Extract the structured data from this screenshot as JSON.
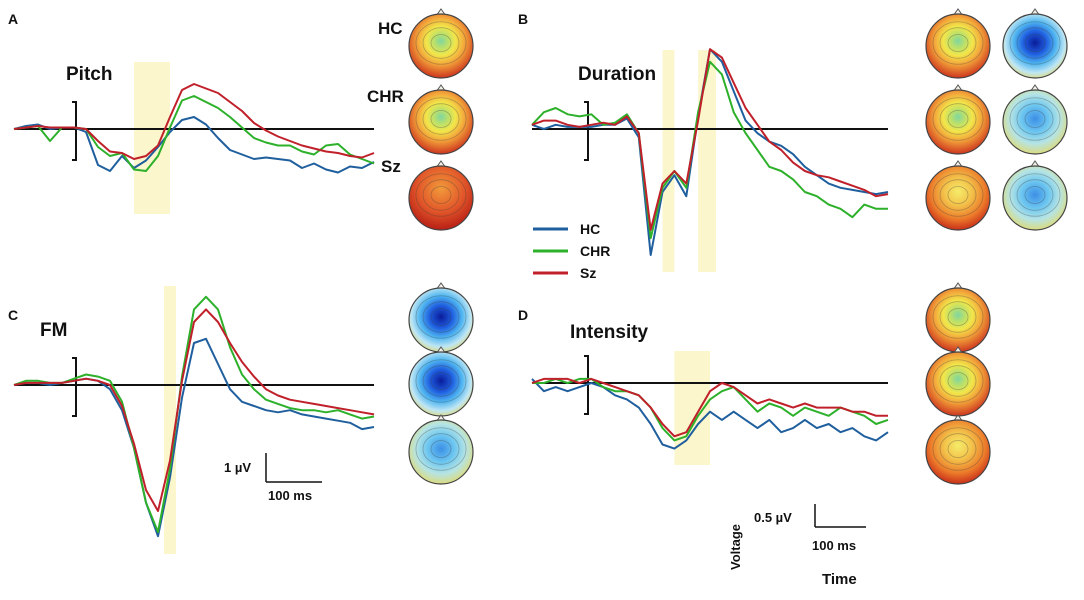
{
  "colors": {
    "HC": "#1f5f9e",
    "CHR": "#2db02a",
    "Sz": "#c0202a",
    "highlight": "#fbf6cc"
  },
  "legend": [
    {
      "name": "HC",
      "color": "#1f5f9e"
    },
    {
      "name": "CHR",
      "color": "#2db02a"
    },
    {
      "name": "Sz",
      "color": "#c0202a"
    }
  ],
  "scale_bars": {
    "top_left": {
      "amplitude": "1 µV",
      "time": "100 ms"
    },
    "bottom_right": {
      "amplitude": "0.5 µV",
      "time": "100 ms",
      "y_axis_label": "Voltage",
      "x_axis_label": "Time"
    }
  },
  "chart_data": [
    {
      "type": "line",
      "panel": "A",
      "title": "Pitch",
      "group_labels": [
        "HC",
        "CHR",
        "Sz"
      ],
      "y_unit": "µV",
      "x": [
        -100,
        -80,
        -60,
        -40,
        -20,
        0,
        20,
        40,
        60,
        80,
        100,
        120,
        140,
        160,
        180,
        200,
        220,
        240,
        260,
        280,
        300,
        320,
        340,
        360,
        380,
        400,
        420,
        440,
        460,
        480,
        500
      ],
      "series": [
        {
          "name": "HC",
          "values": [
            0,
            0.1,
            0.15,
            0,
            0.05,
            0.05,
            -0.1,
            -1.2,
            -1.4,
            -0.9,
            -1.3,
            -1.05,
            -0.6,
            -0.1,
            0.3,
            0.4,
            0.15,
            -0.3,
            -0.7,
            -0.85,
            -1.0,
            -0.95,
            -1.0,
            -1.05,
            -1.3,
            -1.15,
            -1.35,
            -1.45,
            -1.25,
            -1.3,
            -1.1
          ]
        },
        {
          "name": "CHR",
          "values": [
            0,
            0.05,
            0.1,
            -0.4,
            0.05,
            0.05,
            0,
            -0.6,
            -0.9,
            -0.8,
            -1.35,
            -1.4,
            -0.9,
            0.05,
            0.95,
            1.1,
            0.9,
            0.7,
            0.4,
            0.05,
            -0.3,
            -0.45,
            -0.55,
            -0.55,
            -0.75,
            -0.85,
            -0.55,
            -0.5,
            -0.85,
            -1.0,
            -1.15
          ]
        },
        {
          "name": "Sz",
          "values": [
            0,
            0.05,
            0.1,
            0.05,
            0.05,
            0.05,
            0,
            -0.4,
            -0.75,
            -0.8,
            -1.0,
            -0.9,
            -0.55,
            0.4,
            1.3,
            1.5,
            1.35,
            1.2,
            0.9,
            0.6,
            0.2,
            -0.05,
            -0.25,
            -0.4,
            -0.55,
            -0.65,
            -0.75,
            -0.8,
            -0.9,
            -0.95,
            -0.8
          ]
        }
      ],
      "highlight_windows": [
        [
          100,
          160
        ]
      ]
    },
    {
      "type": "line",
      "panel": "B",
      "title": "Duration",
      "y_unit": "µV",
      "x": [
        -100,
        -80,
        -60,
        -40,
        -20,
        0,
        20,
        40,
        60,
        80,
        100,
        120,
        140,
        160,
        180,
        200,
        220,
        240,
        260,
        280,
        300,
        320,
        340,
        360,
        380,
        400,
        420,
        440,
        460,
        480,
        500
      ],
      "series": [
        {
          "name": "HC",
          "values": [
            0.1,
            0,
            0.1,
            0.05,
            0.05,
            0.05,
            0.1,
            0.1,
            0.25,
            -0.2,
            -3.0,
            -1.5,
            -1.1,
            -1.6,
            0.3,
            1.9,
            1.6,
            0.9,
            0.2,
            -0.1,
            -0.3,
            -0.4,
            -0.6,
            -0.9,
            -1.1,
            -1.3,
            -1.4,
            -1.45,
            -1.5,
            -1.55,
            -1.5
          ]
        },
        {
          "name": "CHR",
          "values": [
            0.1,
            0.4,
            0.5,
            0.35,
            0.3,
            0.35,
            0.1,
            0.15,
            0.35,
            -0.1,
            -2.6,
            -1.4,
            -1.0,
            -1.4,
            0.4,
            1.6,
            1.3,
            0.4,
            -0.1,
            -0.5,
            -0.9,
            -1.0,
            -1.2,
            -1.5,
            -1.6,
            -1.8,
            -1.9,
            -2.1,
            -1.8,
            -1.9,
            -1.9
          ]
        },
        {
          "name": "Sz",
          "values": [
            0.1,
            0.2,
            0.2,
            0.1,
            0.05,
            0.1,
            0.15,
            0.1,
            0.3,
            -0.1,
            -2.4,
            -1.3,
            -1.0,
            -1.3,
            0.2,
            1.9,
            1.7,
            1.1,
            0.5,
            0.1,
            -0.3,
            -0.5,
            -0.8,
            -1.0,
            -1.1,
            -1.15,
            -1.25,
            -1.35,
            -1.45,
            -1.6,
            -1.55
          ]
        }
      ],
      "highlight_windows": [
        [
          120,
          140
        ],
        [
          180,
          210
        ]
      ]
    },
    {
      "type": "line",
      "panel": "C",
      "title": "FM",
      "y_unit": "µV",
      "x": [
        -100,
        -80,
        -60,
        -40,
        -20,
        0,
        20,
        40,
        60,
        80,
        100,
        120,
        140,
        160,
        180,
        200,
        220,
        240,
        260,
        280,
        300,
        320,
        340,
        360,
        380,
        400,
        420,
        440,
        460,
        480,
        500
      ],
      "series": [
        {
          "name": "HC",
          "values": [
            0,
            0.05,
            0.05,
            0,
            0.05,
            0.1,
            0.15,
            0.1,
            -0.1,
            -0.6,
            -1.5,
            -2.8,
            -3.6,
            -2.2,
            -0.3,
            1.0,
            1.1,
            0.5,
            -0.1,
            -0.4,
            -0.5,
            -0.6,
            -0.65,
            -0.6,
            -0.7,
            -0.75,
            -0.8,
            -0.85,
            -0.9,
            -1.05,
            -1.0
          ]
        },
        {
          "name": "CHR",
          "values": [
            0,
            0.1,
            0.1,
            0.05,
            0.05,
            0.15,
            0.25,
            0.2,
            0.1,
            -0.4,
            -1.5,
            -2.8,
            -3.5,
            -2.0,
            0.2,
            1.8,
            2.1,
            1.8,
            0.9,
            0.25,
            -0.1,
            -0.35,
            -0.45,
            -0.55,
            -0.6,
            -0.6,
            -0.65,
            -0.6,
            -0.7,
            -0.8,
            -0.75
          ]
        },
        {
          "name": "Sz",
          "values": [
            0,
            0.05,
            0.05,
            0.05,
            0.05,
            0.1,
            0.15,
            0.1,
            0,
            -0.5,
            -1.4,
            -2.5,
            -3.0,
            -1.8,
            0.1,
            1.5,
            1.8,
            1.5,
            1.0,
            0.55,
            0.2,
            -0.1,
            -0.25,
            -0.35,
            -0.4,
            -0.45,
            -0.5,
            -0.55,
            -0.6,
            -0.65,
            -0.7
          ]
        }
      ],
      "highlight_windows": [
        [
          150,
          170
        ]
      ]
    },
    {
      "type": "line",
      "panel": "D",
      "title": "Intensity",
      "y_unit": "µV",
      "x": [
        -100,
        -80,
        -60,
        -40,
        -20,
        0,
        20,
        40,
        60,
        80,
        100,
        120,
        140,
        160,
        180,
        200,
        220,
        240,
        260,
        280,
        300,
        320,
        340,
        360,
        380,
        400,
        420,
        440,
        460,
        480,
        500
      ],
      "series": [
        {
          "name": "HC",
          "values": [
            0.05,
            -0.1,
            -0.05,
            -0.1,
            -0.05,
            0,
            -0.05,
            -0.15,
            -0.2,
            -0.3,
            -0.5,
            -0.75,
            -0.8,
            -0.7,
            -0.5,
            -0.35,
            -0.45,
            -0.35,
            -0.45,
            -0.55,
            -0.45,
            -0.6,
            -0.55,
            -0.45,
            -0.55,
            -0.5,
            -0.6,
            -0.55,
            -0.65,
            -0.7,
            -0.6
          ]
        },
        {
          "name": "CHR",
          "values": [
            0,
            0,
            0.05,
            0,
            0.05,
            0.05,
            -0.05,
            -0.1,
            -0.1,
            -0.15,
            -0.3,
            -0.55,
            -0.7,
            -0.65,
            -0.4,
            -0.2,
            -0.1,
            -0.05,
            -0.2,
            -0.35,
            -0.25,
            -0.3,
            -0.4,
            -0.3,
            -0.35,
            -0.4,
            -0.3,
            -0.35,
            -0.4,
            -0.5,
            -0.45
          ]
        },
        {
          "name": "Sz",
          "values": [
            0,
            0.05,
            0.05,
            0.05,
            0,
            0.05,
            0,
            -0.05,
            -0.1,
            -0.15,
            -0.3,
            -0.5,
            -0.65,
            -0.6,
            -0.35,
            -0.1,
            0,
            -0.05,
            -0.15,
            -0.25,
            -0.2,
            -0.25,
            -0.3,
            -0.25,
            -0.3,
            -0.3,
            -0.3,
            -0.35,
            -0.35,
            -0.4,
            -0.4
          ]
        }
      ],
      "highlight_windows": [
        [
          140,
          200
        ]
      ]
    }
  ],
  "topomaps": {
    "A": [
      [
        "green-center",
        "green-center",
        "red-uniform"
      ]
    ],
    "B": [
      [
        "green-center",
        "green-center",
        "yellow-center"
      ],
      [
        "blue-dark",
        "blue-light",
        "blue-light"
      ]
    ],
    "C": [
      [
        "blue-dark",
        "blue-dark",
        "blue-light"
      ]
    ],
    "D": [
      [
        "green-center",
        "green-center",
        "yellow-center"
      ]
    ]
  }
}
